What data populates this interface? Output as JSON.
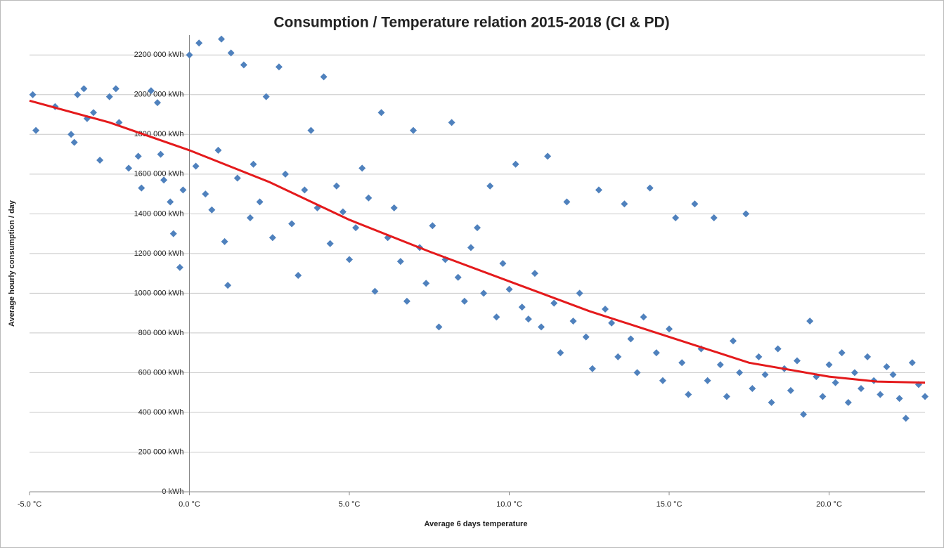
{
  "chart_data": {
    "type": "scatter",
    "title": "Consumption / Temperature relation 2015-2018 (CI & PD)",
    "x_label": "Average  6 days temperature",
    "y_label": "Average hourly consumption / day",
    "xlim": [
      -5,
      23
    ],
    "ylim": [
      0,
      2300000
    ],
    "xticks": [
      {
        "value": -5,
        "label": "-5.0 °C"
      },
      {
        "value": 0,
        "label": "0.0 °C"
      },
      {
        "value": 5,
        "label": "5.0 °C"
      },
      {
        "value": 10,
        "label": "10.0 °C"
      },
      {
        "value": 15,
        "label": "15.0 °C"
      },
      {
        "value": 20,
        "label": "20.0 °C"
      }
    ],
    "yticks": [
      {
        "value": 0,
        "label": "0 kWh"
      },
      {
        "value": 200000,
        "label": "200 000 kWh"
      },
      {
        "value": 400000,
        "label": "400 000 kWh"
      },
      {
        "value": 600000,
        "label": "600 000 kWh"
      },
      {
        "value": 800000,
        "label": "800 000 kWh"
      },
      {
        "value": 1000000,
        "label": "1000 000 kWh"
      },
      {
        "value": 1200000,
        "label": "1200 000 kWh"
      },
      {
        "value": 1400000,
        "label": "1400 000 kWh"
      },
      {
        "value": 1600000,
        "label": "1600 000 kWh"
      },
      {
        "value": 1800000,
        "label": "1800 000 kWh"
      },
      {
        "value": 2000000,
        "label": "2000 000 kWh"
      },
      {
        "value": 2200000,
        "label": "2200 000 kWh"
      }
    ],
    "grid": true,
    "series": [
      {
        "type": "scatter",
        "marker": "diamond",
        "color": "#4f81bd",
        "x": [
          -4.9,
          -4.8,
          -4.2,
          -3.7,
          -3.6,
          -3.5,
          -3.3,
          -3.2,
          -3.0,
          -2.8,
          -2.5,
          -2.3,
          -2.2,
          -1.9,
          -1.6,
          -1.5,
          -1.2,
          -1.0,
          -0.9,
          -0.8,
          -0.6,
          -0.5,
          -0.3,
          -0.2,
          0.0,
          0.2,
          0.3,
          0.5,
          0.7,
          0.9,
          1.0,
          1.1,
          1.2,
          1.3,
          1.5,
          1.7,
          1.9,
          2.0,
          2.2,
          2.4,
          2.6,
          2.8,
          3.0,
          3.2,
          3.4,
          3.6,
          3.8,
          4.0,
          4.2,
          4.4,
          4.6,
          4.8,
          5.0,
          5.2,
          5.4,
          5.6,
          5.8,
          6.0,
          6.2,
          6.4,
          6.6,
          6.8,
          7.0,
          7.2,
          7.4,
          7.6,
          7.8,
          8.0,
          8.2,
          8.4,
          8.6,
          8.8,
          9.0,
          9.2,
          9.4,
          9.6,
          9.8,
          10.0,
          10.2,
          10.4,
          10.6,
          10.8,
          11.0,
          11.2,
          11.4,
          11.6,
          11.8,
          12.0,
          12.2,
          12.4,
          12.6,
          12.8,
          13.0,
          13.2,
          13.4,
          13.6,
          13.8,
          14.0,
          14.2,
          14.4,
          14.6,
          14.8,
          15.0,
          15.2,
          15.4,
          15.6,
          15.8,
          16.0,
          16.2,
          16.4,
          16.6,
          16.8,
          17.0,
          17.2,
          17.4,
          17.6,
          17.8,
          18.0,
          18.2,
          18.4,
          18.6,
          18.8,
          19.0,
          19.2,
          19.4,
          19.6,
          19.8,
          20.0,
          20.2,
          20.4,
          20.6,
          20.8,
          21.0,
          21.2,
          21.4,
          21.6,
          21.8,
          22.0,
          22.2,
          22.4,
          22.6,
          22.8,
          23.0
        ],
        "values": [
          2000000,
          1820000,
          1940000,
          1800000,
          1760000,
          2000000,
          2030000,
          1880000,
          1910000,
          1670000,
          1990000,
          2030000,
          1860000,
          1630000,
          1690000,
          1530000,
          2020000,
          1960000,
          1700000,
          1570000,
          1460000,
          1300000,
          1130000,
          1520000,
          2200000,
          1640000,
          2260000,
          1500000,
          1420000,
          1720000,
          2280000,
          1260000,
          1040000,
          2210000,
          1580000,
          2150000,
          1380000,
          1650000,
          1460000,
          1990000,
          1280000,
          2140000,
          1600000,
          1350000,
          1090000,
          1520000,
          1820000,
          1430000,
          2090000,
          1250000,
          1540000,
          1410000,
          1170000,
          1330000,
          1630000,
          1480000,
          1010000,
          1910000,
          1280000,
          1430000,
          1160000,
          960000,
          1820000,
          1230000,
          1050000,
          1340000,
          830000,
          1170000,
          1860000,
          1080000,
          960000,
          1230000,
          1330000,
          1000000,
          1540000,
          880000,
          1150000,
          1020000,
          1650000,
          930000,
          870000,
          1100000,
          830000,
          1690000,
          950000,
          700000,
          1460000,
          860000,
          1000000,
          780000,
          620000,
          1520000,
          920000,
          850000,
          680000,
          1450000,
          770000,
          600000,
          880000,
          1530000,
          700000,
          560000,
          820000,
          1380000,
          650000,
          490000,
          1450000,
          720000,
          560000,
          1380000,
          640000,
          480000,
          760000,
          600000,
          1400000,
          520000,
          680000,
          590000,
          450000,
          720000,
          620000,
          510000,
          660000,
          390000,
          860000,
          580000,
          480000,
          640000,
          550000,
          700000,
          450000,
          600000,
          520000,
          680000,
          560000,
          490000,
          630000,
          590000,
          470000,
          370000,
          650000,
          540000,
          480000
        ]
      },
      {
        "type": "line",
        "color": "#e41a1c",
        "x": [
          -5,
          -2.5,
          0,
          2.5,
          5,
          7.5,
          10,
          12.5,
          15,
          17.5,
          20,
          21.5,
          23
        ],
        "values": [
          1970000,
          1860000,
          1720000,
          1560000,
          1370000,
          1210000,
          1060000,
          910000,
          780000,
          650000,
          580000,
          555000,
          550000
        ]
      }
    ]
  }
}
